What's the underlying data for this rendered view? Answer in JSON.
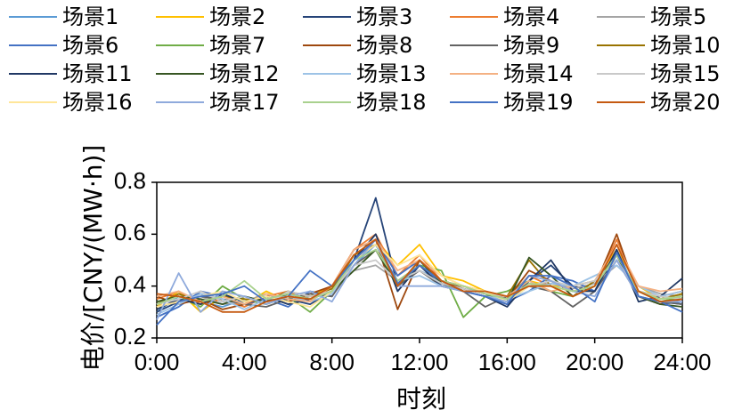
{
  "chart_data": {
    "type": "line",
    "title": "",
    "xlabel": "时刻",
    "ylabel": "电价/[CNY/(MW·h)]",
    "ylim": [
      0.2,
      0.8
    ],
    "yticks": [
      "0.2",
      "0.4",
      "0.6",
      "0.8"
    ],
    "xlim": [
      0,
      24
    ],
    "xticks": [
      "0:00",
      "4:00",
      "8:00",
      "12:00",
      "16:00",
      "20:00",
      "24:00"
    ],
    "grid": false,
    "legend_position": "top",
    "x": [
      0,
      1,
      2,
      3,
      4,
      5,
      6,
      7,
      8,
      9,
      10,
      11,
      12,
      13,
      14,
      15,
      16,
      17,
      18,
      19,
      20,
      21,
      22,
      23,
      24
    ],
    "series": [
      {
        "name": "场景1",
        "color": "#5b9bd5",
        "values": [
          0.3,
          0.36,
          0.34,
          0.32,
          0.35,
          0.33,
          0.37,
          0.35,
          0.38,
          0.48,
          0.56,
          0.42,
          0.46,
          0.42,
          0.4,
          0.37,
          0.34,
          0.4,
          0.42,
          0.38,
          0.4,
          0.5,
          0.38,
          0.36,
          0.35
        ]
      },
      {
        "name": "场景2",
        "color": "#ffc000",
        "values": [
          0.32,
          0.38,
          0.3,
          0.36,
          0.33,
          0.38,
          0.34,
          0.36,
          0.4,
          0.52,
          0.58,
          0.48,
          0.56,
          0.44,
          0.42,
          0.38,
          0.36,
          0.42,
          0.4,
          0.4,
          0.42,
          0.54,
          0.4,
          0.35,
          0.37
        ]
      },
      {
        "name": "场景3",
        "color": "#264478",
        "values": [
          0.3,
          0.34,
          0.37,
          0.34,
          0.36,
          0.34,
          0.35,
          0.33,
          0.38,
          0.5,
          0.74,
          0.4,
          0.5,
          0.41,
          0.38,
          0.36,
          0.33,
          0.42,
          0.48,
          0.4,
          0.38,
          0.52,
          0.36,
          0.34,
          0.33
        ]
      },
      {
        "name": "场景4",
        "color": "#ed7d31",
        "values": [
          0.35,
          0.38,
          0.33,
          0.35,
          0.32,
          0.36,
          0.38,
          0.34,
          0.4,
          0.54,
          0.6,
          0.44,
          0.52,
          0.42,
          0.4,
          0.38,
          0.35,
          0.44,
          0.4,
          0.38,
          0.4,
          0.58,
          0.38,
          0.36,
          0.38
        ]
      },
      {
        "name": "场景5",
        "color": "#a5a5a5",
        "values": [
          0.33,
          0.35,
          0.36,
          0.33,
          0.34,
          0.37,
          0.34,
          0.36,
          0.38,
          0.46,
          0.48,
          0.42,
          0.46,
          0.4,
          0.39,
          0.37,
          0.36,
          0.4,
          0.41,
          0.39,
          0.41,
          0.48,
          0.4,
          0.37,
          0.36
        ]
      },
      {
        "name": "场景6",
        "color": "#4472c4",
        "values": [
          0.28,
          0.32,
          0.38,
          0.36,
          0.33,
          0.35,
          0.32,
          0.38,
          0.36,
          0.5,
          0.58,
          0.44,
          0.5,
          0.4,
          0.38,
          0.36,
          0.34,
          0.38,
          0.44,
          0.42,
          0.38,
          0.54,
          0.36,
          0.33,
          0.34
        ]
      },
      {
        "name": "场景7",
        "color": "#70ad47",
        "values": [
          0.34,
          0.36,
          0.32,
          0.4,
          0.35,
          0.33,
          0.36,
          0.3,
          0.38,
          0.52,
          0.56,
          0.4,
          0.48,
          0.46,
          0.28,
          0.36,
          0.38,
          0.42,
          0.38,
          0.36,
          0.42,
          0.5,
          0.38,
          0.34,
          0.36
        ]
      },
      {
        "name": "场景8",
        "color": "#9e480e",
        "values": [
          0.36,
          0.33,
          0.35,
          0.31,
          0.33,
          0.36,
          0.34,
          0.37,
          0.4,
          0.54,
          0.58,
          0.31,
          0.5,
          0.42,
          0.39,
          0.37,
          0.35,
          0.46,
          0.42,
          0.38,
          0.4,
          0.6,
          0.36,
          0.33,
          0.35
        ]
      },
      {
        "name": "场景9",
        "color": "#636363",
        "values": [
          0.32,
          0.34,
          0.36,
          0.35,
          0.33,
          0.32,
          0.35,
          0.37,
          0.36,
          0.48,
          0.54,
          0.4,
          0.46,
          0.4,
          0.38,
          0.32,
          0.36,
          0.4,
          0.38,
          0.32,
          0.38,
          0.5,
          0.36,
          0.34,
          0.33
        ]
      },
      {
        "name": "场景10",
        "color": "#997300",
        "values": [
          0.33,
          0.37,
          0.34,
          0.36,
          0.35,
          0.34,
          0.38,
          0.36,
          0.39,
          0.52,
          0.56,
          0.42,
          0.48,
          0.42,
          0.4,
          0.38,
          0.36,
          0.5,
          0.4,
          0.36,
          0.42,
          0.52,
          0.38,
          0.35,
          0.37
        ]
      },
      {
        "name": "场景11",
        "color": "#203864",
        "values": [
          0.31,
          0.35,
          0.33,
          0.37,
          0.34,
          0.36,
          0.33,
          0.35,
          0.38,
          0.5,
          0.6,
          0.38,
          0.48,
          0.4,
          0.38,
          0.36,
          0.32,
          0.42,
          0.5,
          0.38,
          0.38,
          0.54,
          0.34,
          0.36,
          0.43
        ]
      },
      {
        "name": "场景12",
        "color": "#375623",
        "values": [
          0.34,
          0.36,
          0.35,
          0.33,
          0.36,
          0.34,
          0.37,
          0.35,
          0.38,
          0.46,
          0.54,
          0.4,
          0.5,
          0.41,
          0.39,
          0.37,
          0.34,
          0.51,
          0.44,
          0.36,
          0.4,
          0.52,
          0.36,
          0.33,
          0.32
        ]
      },
      {
        "name": "场景13",
        "color": "#9dc3e6",
        "values": [
          0.29,
          0.33,
          0.37,
          0.35,
          0.31,
          0.35,
          0.36,
          0.34,
          0.37,
          0.5,
          0.56,
          0.42,
          0.44,
          0.4,
          0.38,
          0.36,
          0.35,
          0.38,
          0.41,
          0.4,
          0.44,
          0.48,
          0.4,
          0.36,
          0.38
        ]
      },
      {
        "name": "场景14",
        "color": "#f4b183",
        "values": [
          0.36,
          0.38,
          0.34,
          0.36,
          0.33,
          0.37,
          0.35,
          0.34,
          0.4,
          0.54,
          0.58,
          0.46,
          0.5,
          0.44,
          0.4,
          0.38,
          0.36,
          0.42,
          0.38,
          0.4,
          0.42,
          0.56,
          0.4,
          0.38,
          0.39
        ]
      },
      {
        "name": "场景15",
        "color": "#c9c9c9",
        "values": [
          0.33,
          0.35,
          0.38,
          0.34,
          0.36,
          0.33,
          0.38,
          0.36,
          0.38,
          0.48,
          0.5,
          0.42,
          0.46,
          0.41,
          0.39,
          0.37,
          0.36,
          0.4,
          0.42,
          0.4,
          0.42,
          0.5,
          0.38,
          0.36,
          0.35
        ]
      },
      {
        "name": "场景16",
        "color": "#ffe699",
        "values": [
          0.32,
          0.34,
          0.36,
          0.38,
          0.34,
          0.36,
          0.34,
          0.32,
          0.38,
          0.5,
          0.56,
          0.48,
          0.52,
          0.44,
          0.4,
          0.38,
          0.34,
          0.4,
          0.4,
          0.38,
          0.4,
          0.52,
          0.38,
          0.35,
          0.36
        ]
      },
      {
        "name": "场景17",
        "color": "#8faadc",
        "values": [
          0.27,
          0.45,
          0.3,
          0.38,
          0.36,
          0.33,
          0.36,
          0.38,
          0.34,
          0.48,
          0.58,
          0.4,
          0.4,
          0.4,
          0.38,
          0.36,
          0.34,
          0.44,
          0.42,
          0.38,
          0.36,
          0.5,
          0.36,
          0.34,
          0.34
        ]
      },
      {
        "name": "场景18",
        "color": "#a9d18e",
        "values": [
          0.33,
          0.36,
          0.34,
          0.36,
          0.42,
          0.35,
          0.37,
          0.35,
          0.38,
          0.5,
          0.54,
          0.42,
          0.48,
          0.42,
          0.4,
          0.37,
          0.35,
          0.41,
          0.4,
          0.38,
          0.4,
          0.52,
          0.38,
          0.35,
          0.36
        ]
      },
      {
        "name": "场景19",
        "color": "#4472c4",
        "values": [
          0.25,
          0.34,
          0.36,
          0.37,
          0.4,
          0.34,
          0.36,
          0.46,
          0.4,
          0.5,
          0.58,
          0.41,
          0.48,
          0.42,
          0.38,
          0.36,
          0.33,
          0.44,
          0.44,
          0.4,
          0.34,
          0.53,
          0.36,
          0.34,
          0.3
        ]
      },
      {
        "name": "场景20",
        "color": "#c55a11",
        "values": [
          0.37,
          0.36,
          0.34,
          0.3,
          0.3,
          0.34,
          0.36,
          0.35,
          0.4,
          0.52,
          0.58,
          0.4,
          0.5,
          0.42,
          0.38,
          0.38,
          0.36,
          0.4,
          0.4,
          0.36,
          0.4,
          0.56,
          0.38,
          0.34,
          0.35
        ]
      }
    ]
  }
}
